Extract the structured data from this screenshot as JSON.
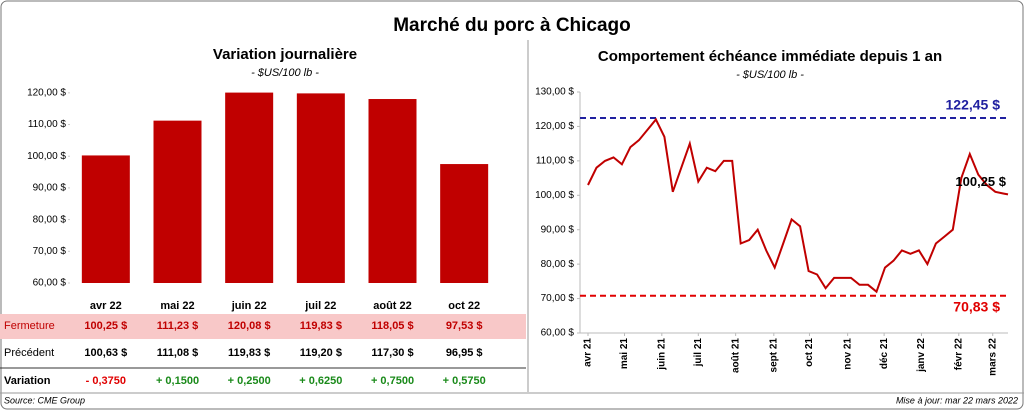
{
  "title": "Marché du porc à Chicago",
  "chart_data": [
    {
      "type": "bar",
      "title": "Variation journalière",
      "subtitle": "- $US/100 lb -",
      "color": "#c00000",
      "categories": [
        "avr 22",
        "mai 22",
        "juin 22",
        "juil 22",
        "août 22",
        "oct 22"
      ],
      "values": [
        100.25,
        111.23,
        120.08,
        119.83,
        118.05,
        97.53
      ],
      "value_labels": [
        "100,25  $",
        "111,23  $",
        "120,08  $",
        "119,83  $",
        "118,05  $",
        "97,53  $"
      ],
      "ylim": [
        60,
        125
      ],
      "yticks": [
        {
          "value": 60,
          "label": "60,00 $"
        },
        {
          "value": 70,
          "label": "70,00 $"
        },
        {
          "value": 80,
          "label": "80,00 $"
        },
        {
          "value": 90,
          "label": "90,00 $"
        },
        {
          "value": 100,
          "label": "100,00 $"
        },
        {
          "value": 110,
          "label": "110,00 $"
        },
        {
          "value": 120,
          "label": "120,00 $"
        }
      ]
    },
    {
      "type": "line",
      "title": "Comportement  échéance immédiate depuis 1 an",
      "subtitle": "- $US/100 lb -",
      "color": "#c00000",
      "x": [
        0,
        1,
        2,
        3,
        4,
        5,
        6,
        7,
        8,
        9,
        10,
        11,
        12,
        13,
        14,
        15,
        16,
        17,
        18,
        19,
        20,
        21,
        22,
        23,
        24,
        25,
        26,
        27,
        28,
        29,
        30,
        31,
        32,
        33,
        34,
        35,
        36,
        37,
        38,
        39,
        40,
        41,
        42,
        43,
        44,
        45,
        46,
        47,
        48,
        49,
        49.5
      ],
      "values": [
        103,
        108,
        110,
        111,
        109,
        114,
        116,
        119,
        122,
        117,
        101,
        108,
        115,
        104,
        108,
        107,
        110,
        110,
        86,
        87,
        90,
        84,
        79,
        86,
        93,
        91,
        78,
        77,
        73,
        76,
        76,
        76,
        74,
        74,
        72,
        79,
        81,
        84,
        83,
        84,
        80,
        86,
        88,
        90,
        105,
        112,
        106,
        103,
        101,
        100.5,
        100.25
      ],
      "xlim": [
        0,
        49.5
      ],
      "xticks": [
        {
          "value": 0,
          "label": "avr 21"
        },
        {
          "value": 4.3,
          "label": "mai 21"
        },
        {
          "value": 8.7,
          "label": "juin 21"
        },
        {
          "value": 13,
          "label": "juil 21"
        },
        {
          "value": 17.4,
          "label": "août 21"
        },
        {
          "value": 21.9,
          "label": "sept 21"
        },
        {
          "value": 26.1,
          "label": "oct 21"
        },
        {
          "value": 30.6,
          "label": "nov 21"
        },
        {
          "value": 34.9,
          "label": "déc 21"
        },
        {
          "value": 39.3,
          "label": "janv 22"
        },
        {
          "value": 43.7,
          "label": "févr 22"
        },
        {
          "value": 47.7,
          "label": "mars 22"
        }
      ],
      "ylim": [
        60,
        130
      ],
      "yticks": [
        {
          "value": 60,
          "label": "60,00 $"
        },
        {
          "value": 70,
          "label": "70,00 $"
        },
        {
          "value": 80,
          "label": "80,00 $"
        },
        {
          "value": 90,
          "label": "90,00 $"
        },
        {
          "value": 100,
          "label": "100,00 $"
        },
        {
          "value": 110,
          "label": "110,00 $"
        },
        {
          "value": 120,
          "label": "120,00 $"
        },
        {
          "value": 130,
          "label": "130,00 $"
        }
      ],
      "hlines": [
        {
          "value": 122.45,
          "label": "122,45 $",
          "color": "#2020a0"
        },
        {
          "value": 70.83,
          "label": "70,83 $",
          "color": "#e00000"
        }
      ],
      "annotations": [
        {
          "x": 49.5,
          "y": 100.25,
          "label": "100,25 $"
        }
      ]
    }
  ],
  "table": {
    "row_labels": [
      "Fermeture",
      "Précédent",
      "Variation"
    ],
    "previous": [
      "100,63  $",
      "111,08  $",
      "119,83  $",
      "119,20  $",
      "117,30  $",
      "96,95  $"
    ],
    "change": [
      "- 0,3750",
      "+ 0,1500",
      "+ 0,2500",
      "+ 0,6250",
      "+ 0,7500",
      "+ 0,5750"
    ]
  },
  "source": "Source: CME Group",
  "updated": "Mise à jour: mar 22 mars 2022"
}
